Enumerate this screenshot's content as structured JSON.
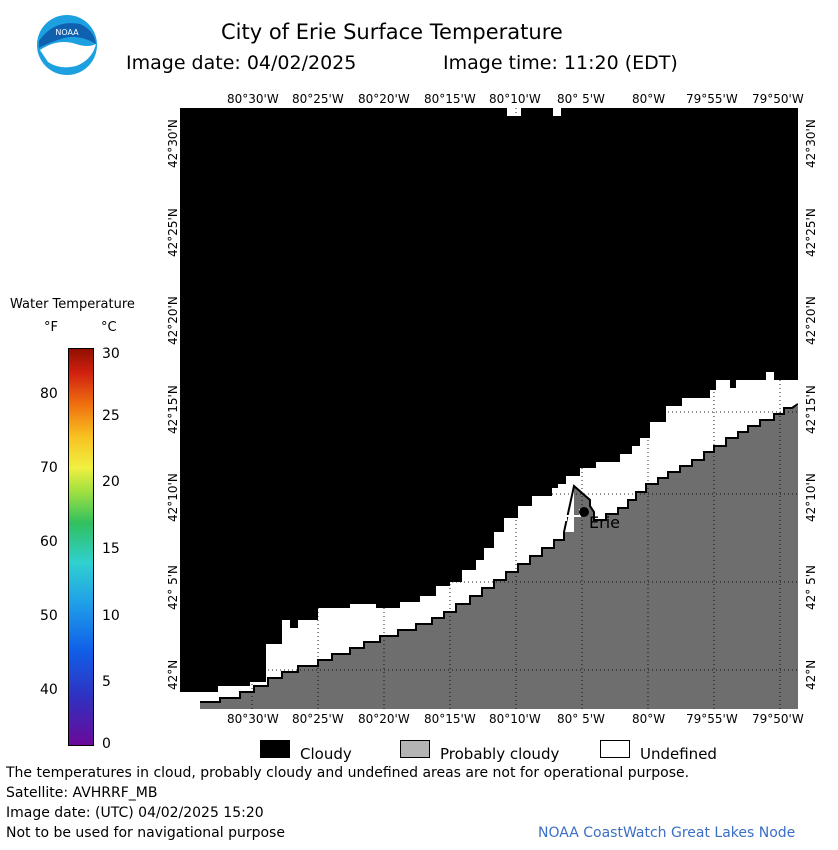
{
  "header": {
    "title": "City of Erie Surface Temperature",
    "image_date": "Image date: 04/02/2025",
    "image_time": "Image time: 11:20 (EDT)"
  },
  "logo": {
    "text": "NOAA",
    "color_ring": "#1ca0e0",
    "color_bird": "#ffffff",
    "color_inner": "#1060b0"
  },
  "map": {
    "lon_ticks": [
      "80°30'W",
      "80°25'W",
      "80°20'W",
      "80°15'W",
      "80°10'W",
      "80° 5'W",
      "80°W",
      "79°55'W",
      "79°50'W"
    ],
    "lat_ticks": [
      "42°30'N",
      "42°25'N",
      "42°20'N",
      "42°15'N",
      "42°10'N",
      "42° 5'N",
      "42°N"
    ],
    "city_label": "Erie",
    "colors": {
      "cloudy": "#000000",
      "probably_cloudy": "#6e6e6e",
      "undefined": "#ffffff"
    }
  },
  "colorbar": {
    "title": "Water Temperature",
    "unit_f": "°F",
    "unit_c": "°C",
    "f_labels": [
      "80",
      "70",
      "60",
      "50",
      "40"
    ],
    "c_labels": [
      "30",
      "25",
      "20",
      "15",
      "10",
      "5",
      "0"
    ]
  },
  "legend": {
    "cloudy": "Cloudy",
    "probably_cloudy": "Probably cloudy",
    "undefined": "Undefined"
  },
  "footer": {
    "line1": "The temperatures in cloud, probably cloudy and undefined areas are not for operational purpose.",
    "line2": "Satellite: AVHRRF_MB",
    "line3": "Image date: (UTC) 04/02/2025  15:20",
    "line4": "Not to be used for navigational purpose",
    "credit": "NOAA CoastWatch Great Lakes Node",
    "credit_color": "#3a6fc4"
  }
}
